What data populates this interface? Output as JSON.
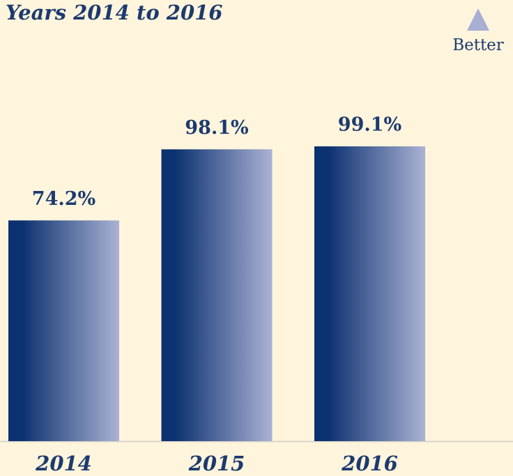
{
  "chart_data": {
    "type": "bar",
    "title": "Years 2014 to 2016",
    "annotation": "Better",
    "categories": [
      "2014",
      "2015",
      "2016"
    ],
    "values": [
      74.2,
      98.1,
      99.1
    ],
    "value_labels": [
      "74.2%",
      "98.1%",
      "99.1%"
    ],
    "color": "#0c3170",
    "color_end": "#abb2d4",
    "grid": false
  }
}
